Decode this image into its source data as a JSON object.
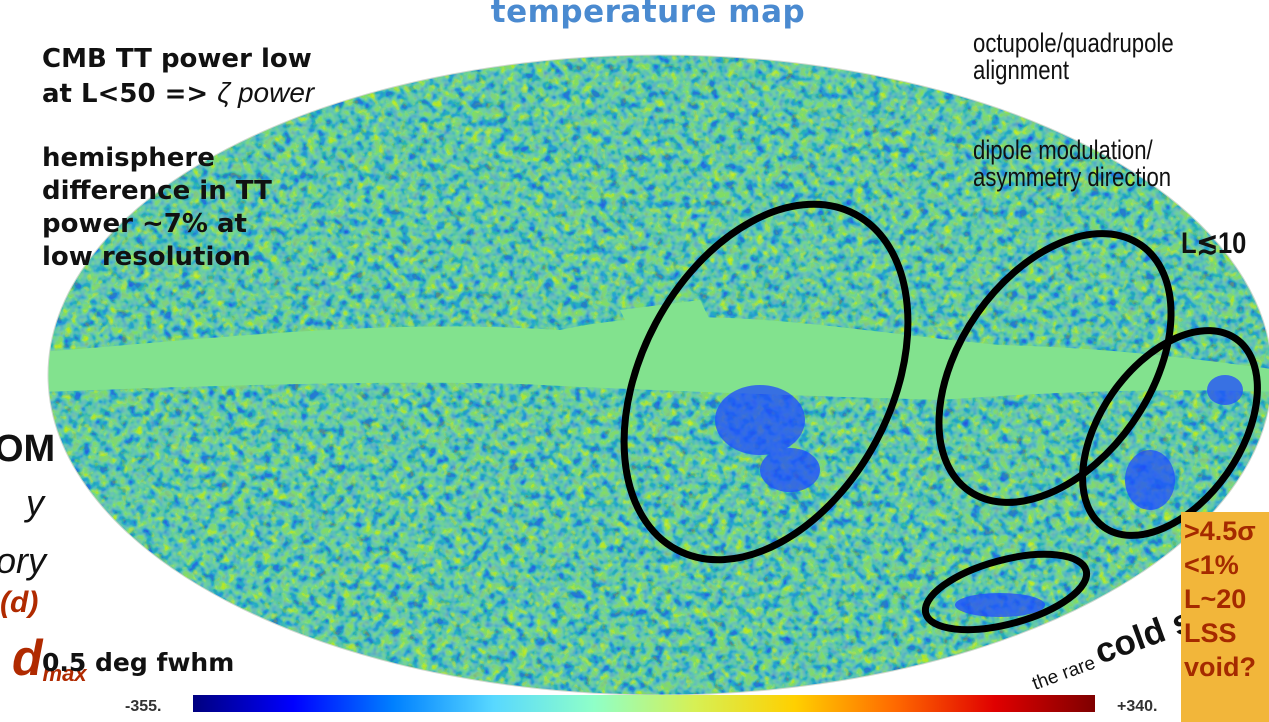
{
  "title": "temperature map",
  "left_notes": {
    "power_line1": "CMB TT power low",
    "power_line2_prefix": "at L<50 => ",
    "power_line2_italic": "ζ power",
    "hemisphere_lines": [
      "hemisphere",
      "difference in TT",
      "power ~7% at",
      "low resolution"
    ]
  },
  "right_notes": {
    "alignment_line1": "octupole/quadrupole",
    "alignment_line2": "alignment",
    "dipole_line1": "dipole modulation/",
    "dipole_line2": "asymmetry direction",
    "l_limit": "L≲10"
  },
  "cold_spot": {
    "prefix": "the rare",
    "label": "cold spot"
  },
  "sigma_box": [
    "&gt;4.5σ",
    "<1%",
    "L~20",
    "LSS",
    "void?"
  ],
  "cut_left_text": {
    "om": "OM",
    "y": "y",
    "ory": "ory",
    "d": "(d)",
    "dmax_main": "d",
    "dmax_sub": "max"
  },
  "resolution_label": "0.5 deg fwhm",
  "colorbar": {
    "min_label": "-355.",
    "max_label": "+340.",
    "stops": [
      "#00007f",
      "#0000ff",
      "#0080ff",
      "#58d8ff",
      "#8fffc8",
      "#d6f055",
      "#ffd000",
      "#ff6a00",
      "#e00000",
      "#7f0000"
    ]
  },
  "map": {
    "background_color": "#7ee08c",
    "ring_color": "#000000"
  }
}
